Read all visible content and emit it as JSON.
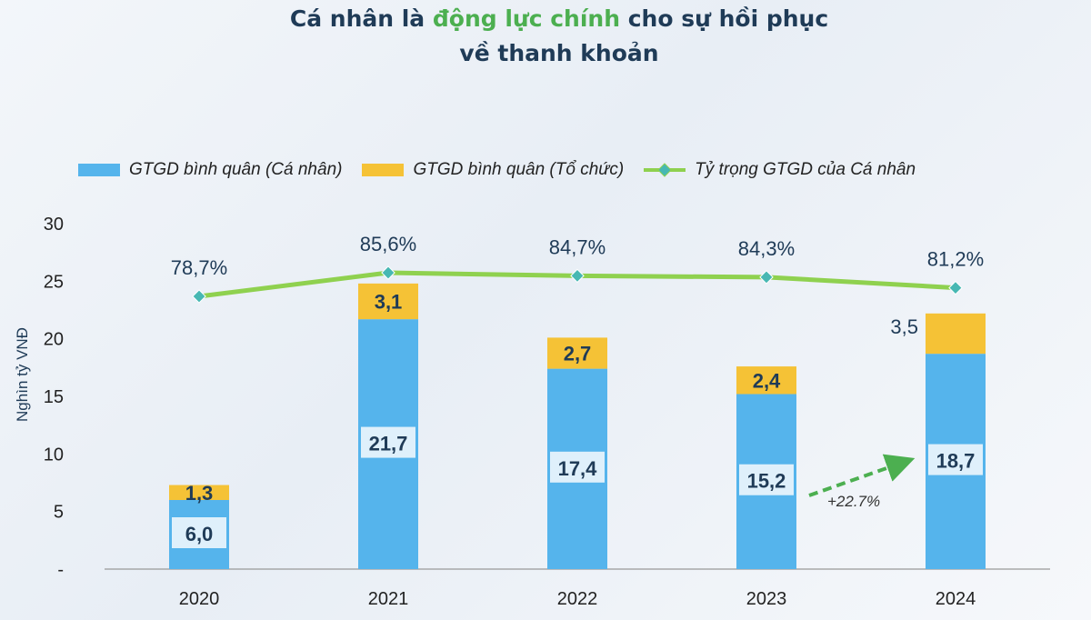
{
  "title": {
    "line1_pre": "Cá nhân là ",
    "line1_highlight": "động lực chính",
    "line1_post": " cho sự hồi phục",
    "line2": "về thanh khoản"
  },
  "legend": {
    "retail": "GTGD bình quân (Cá nhân)",
    "institution": "GTGD bình quân (Tổ chức)",
    "share": "Tỷ trọng GTGD của Cá nhân"
  },
  "annotation": {
    "growth": "+22.7%"
  },
  "colors": {
    "retail": "#55b4ec",
    "institution": "#f5c236",
    "share": "#8fd14f",
    "marker": "#47b8b3",
    "label_box": "#dff0fb",
    "arrow": "#4caf50"
  },
  "chart_data": {
    "type": "bar",
    "stacked": true,
    "categories": [
      "2020",
      "2021",
      "2022",
      "2023",
      "2024"
    ],
    "ylabel": "Nghìn tỷ VNĐ",
    "ylim": [
      0,
      30
    ],
    "yticks": [
      "-",
      "5",
      "10",
      "15",
      "20",
      "25",
      "30"
    ],
    "series": [
      {
        "name": "GTGD bình quân (Cá nhân)",
        "values": [
          6.0,
          21.7,
          17.4,
          15.2,
          18.7
        ],
        "labels": [
          "6,0",
          "21,7",
          "17,4",
          "15,2",
          "18,7"
        ]
      },
      {
        "name": "GTGD bình quân (Tổ chức)",
        "values": [
          1.3,
          3.1,
          2.7,
          2.4,
          3.5
        ],
        "labels": [
          "1,3",
          "3,1",
          "2,7",
          "2,4",
          "3,5"
        ]
      }
    ],
    "line_series": {
      "name": "Tỷ trọng GTGD của Cá nhân",
      "values": [
        78.7,
        85.6,
        84.7,
        84.3,
        81.2
      ],
      "labels": [
        "78,7%",
        "85,6%",
        "84,7%",
        "84,3%",
        "81,2%"
      ]
    }
  }
}
